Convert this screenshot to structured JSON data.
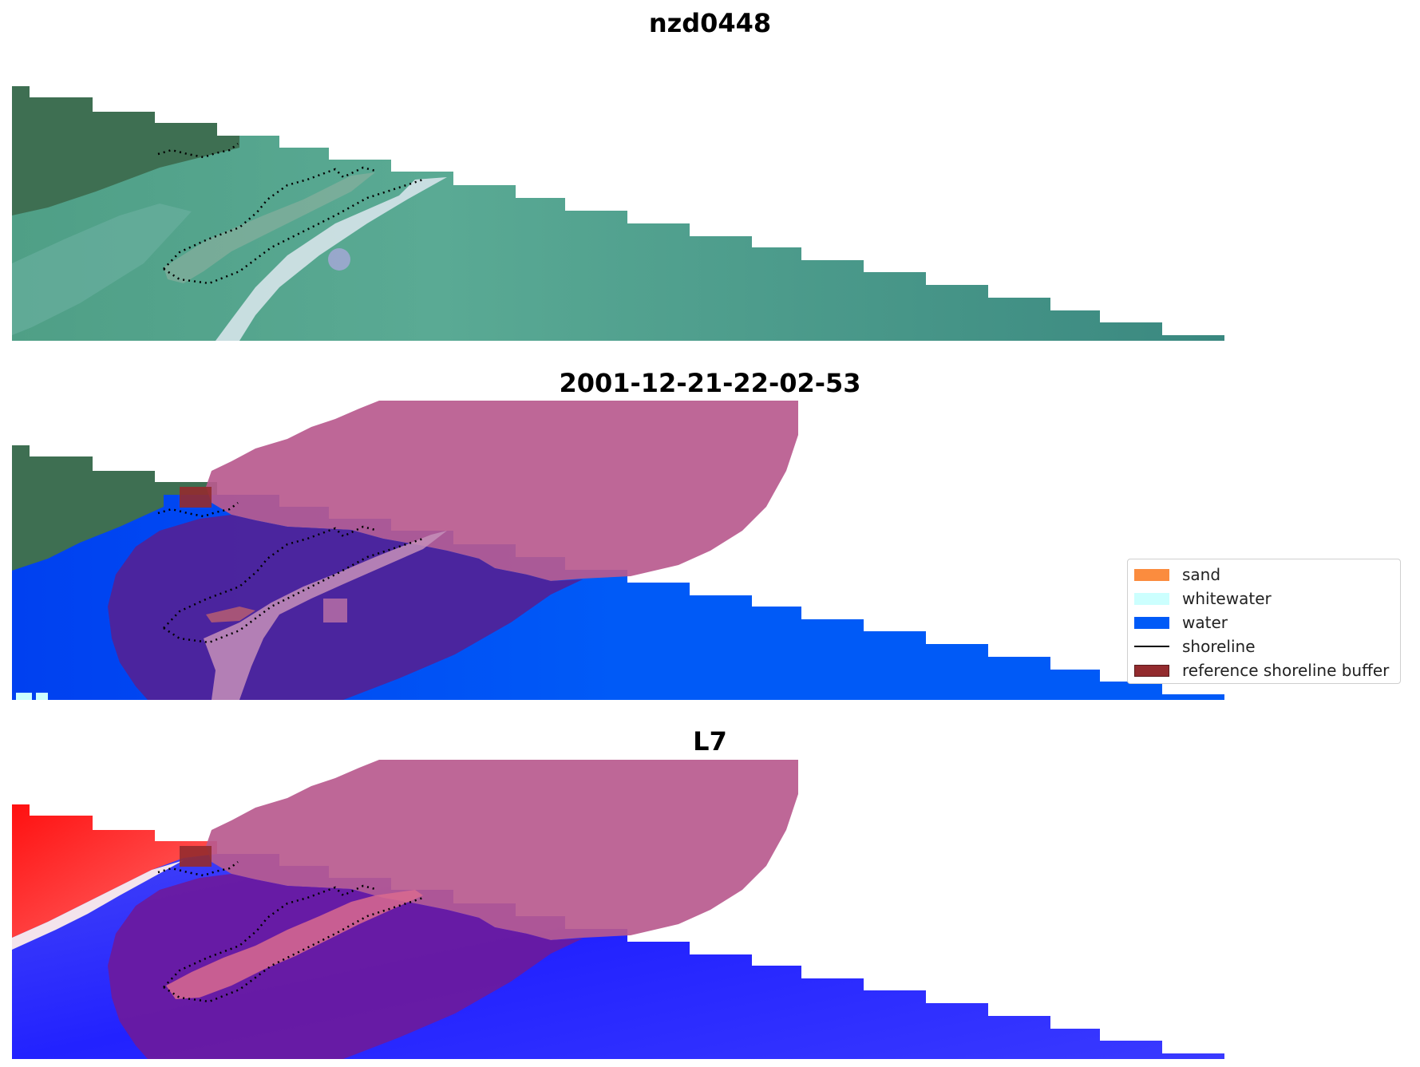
{
  "panels": [
    {
      "title": "nzd0448"
    },
    {
      "title": "2001-12-21-22-02-53"
    },
    {
      "title": "L7"
    }
  ],
  "legend": {
    "items": [
      {
        "label": "sand",
        "color": "#fb8c3e",
        "kind": "patch"
      },
      {
        "label": "whitewater",
        "color": "#ccfffe",
        "kind": "patch"
      },
      {
        "label": "water",
        "color": "#005af7",
        "kind": "patch"
      },
      {
        "label": "shoreline",
        "color": "#000000",
        "kind": "line"
      },
      {
        "label": "reference shoreline buffer",
        "color": "#932b2e",
        "kind": "patch"
      }
    ]
  },
  "colors": {
    "land": "#3e6f52",
    "shallow_water": "#5aaa94",
    "deep_water": "#3a8a82",
    "classified_water": "#005af7",
    "buffer_overlay": "#b85a8e",
    "mndwi_positive": "#2020ff",
    "mndwi_negative": "#ff1010"
  }
}
